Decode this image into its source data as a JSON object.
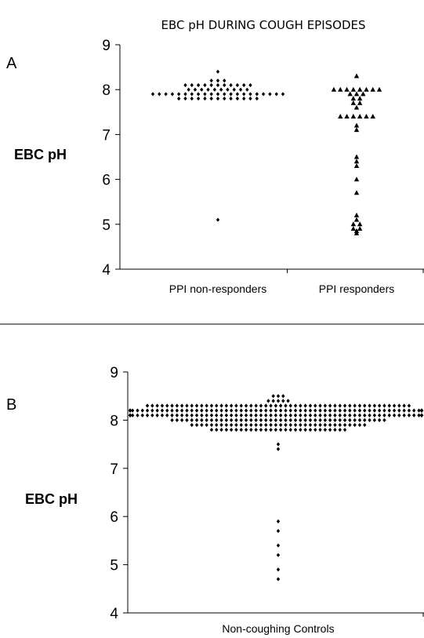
{
  "title": "EBC pH DURING COUGH EPISODES",
  "chart_data": [
    {
      "panel_label": "A",
      "type": "scatter",
      "ylabel": "EBC pH",
      "ylim": [
        4,
        9
      ],
      "yticks": [
        4,
        5,
        6,
        7,
        8,
        9
      ],
      "categories": [
        "PPI non-responders",
        "PPI responders"
      ],
      "series": [
        {
          "category": "PPI non-responders",
          "marker": "diamond",
          "values": [
            5.1,
            7.8,
            7.8,
            7.8,
            7.8,
            7.8,
            7.8,
            7.8,
            7.8,
            7.8,
            7.8,
            7.8,
            7.8,
            7.8,
            7.9,
            7.9,
            7.9,
            7.9,
            7.9,
            7.9,
            7.9,
            7.9,
            7.9,
            7.9,
            7.9,
            7.9,
            7.9,
            7.9,
            7.9,
            7.9,
            7.9,
            7.9,
            7.9,
            7.9,
            7.9,
            8.0,
            8.0,
            8.0,
            8.0,
            8.0,
            8.0,
            8.0,
            8.0,
            8.0,
            8.0,
            8.1,
            8.1,
            8.1,
            8.1,
            8.1,
            8.1,
            8.1,
            8.1,
            8.1,
            8.1,
            8.1,
            8.2,
            8.2,
            8.2,
            8.4
          ]
        },
        {
          "category": "PPI responders",
          "marker": "triangle",
          "values": [
            4.8,
            4.85,
            4.9,
            4.9,
            5.0,
            5.0,
            5.1,
            5.2,
            5.7,
            6.0,
            6.3,
            6.4,
            6.5,
            7.1,
            7.2,
            7.4,
            7.4,
            7.4,
            7.4,
            7.4,
            7.4,
            7.6,
            7.7,
            7.7,
            7.8,
            7.8,
            7.9,
            7.9,
            7.9,
            8.0,
            8.0,
            8.0,
            8.0,
            8.0,
            8.0,
            8.0,
            8.0,
            8.3
          ]
        }
      ]
    },
    {
      "panel_label": "B",
      "type": "scatter",
      "ylabel": "EBC pH",
      "ylim": [
        4,
        9
      ],
      "yticks": [
        4,
        5,
        6,
        7,
        8,
        9
      ],
      "categories": [
        "Non-coughing Controls"
      ],
      "series": [
        {
          "category": "Non-coughing Controls",
          "marker": "diamond",
          "values": [
            4.7,
            4.9,
            5.2,
            5.4,
            5.7,
            5.9,
            7.4,
            7.5,
            7.8,
            7.8,
            7.8,
            7.8,
            7.8,
            7.8,
            7.8,
            7.8,
            7.8,
            7.8,
            7.8,
            7.8,
            7.8,
            7.8,
            7.8,
            7.8,
            7.8,
            7.8,
            7.8,
            7.8,
            7.8,
            7.8,
            7.8,
            7.8,
            7.8,
            7.8,
            7.8,
            7.8,
            7.9,
            7.9,
            7.9,
            7.9,
            7.9,
            7.9,
            7.9,
            7.9,
            7.9,
            7.9,
            7.9,
            7.9,
            7.9,
            7.9,
            7.9,
            7.9,
            7.9,
            7.9,
            7.9,
            7.9,
            7.9,
            7.9,
            7.9,
            7.9,
            7.9,
            7.9,
            7.9,
            7.9,
            7.9,
            7.9,
            7.9,
            7.9,
            7.9,
            7.9,
            7.9,
            7.9,
            8.0,
            8.0,
            8.0,
            8.0,
            8.0,
            8.0,
            8.0,
            8.0,
            8.0,
            8.0,
            8.0,
            8.0,
            8.0,
            8.0,
            8.0,
            8.0,
            8.0,
            8.0,
            8.0,
            8.0,
            8.0,
            8.0,
            8.0,
            8.0,
            8.0,
            8.0,
            8.0,
            8.0,
            8.0,
            8.0,
            8.0,
            8.0,
            8.0,
            8.0,
            8.0,
            8.0,
            8.0,
            8.0,
            8.0,
            8.0,
            8.0,
            8.0,
            8.0,
            8.0,
            8.1,
            8.1,
            8.1,
            8.1,
            8.1,
            8.1,
            8.1,
            8.1,
            8.1,
            8.1,
            8.1,
            8.1,
            8.1,
            8.1,
            8.1,
            8.1,
            8.1,
            8.1,
            8.1,
            8.1,
            8.1,
            8.1,
            8.1,
            8.1,
            8.1,
            8.1,
            8.1,
            8.1,
            8.1,
            8.1,
            8.1,
            8.1,
            8.1,
            8.1,
            8.1,
            8.1,
            8.1,
            8.1,
            8.1,
            8.1,
            8.1,
            8.1,
            8.1,
            8.1,
            8.1,
            8.1,
            8.1,
            8.1,
            8.1,
            8.1,
            8.1,
            8.1,
            8.1,
            8.1,
            8.1,
            8.1,
            8.1,
            8.1,
            8.1,
            8.1,
            8.1,
            8.1,
            8.1,
            8.1,
            8.1,
            8.1,
            8.1,
            8.1,
            8.2,
            8.2,
            8.2,
            8.2,
            8.2,
            8.2,
            8.2,
            8.2,
            8.2,
            8.2,
            8.2,
            8.2,
            8.2,
            8.2,
            8.2,
            8.2,
            8.2,
            8.2,
            8.2,
            8.2,
            8.2,
            8.2,
            8.2,
            8.2,
            8.2,
            8.2,
            8.2,
            8.2,
            8.2,
            8.2,
            8.2,
            8.2,
            8.2,
            8.2,
            8.2,
            8.2,
            8.2,
            8.2,
            8.2,
            8.2,
            8.2,
            8.2,
            8.2,
            8.2,
            8.2,
            8.2,
            8.2,
            8.2,
            8.2,
            8.2,
            8.2,
            8.2,
            8.2,
            8.2,
            8.2,
            8.2,
            8.2,
            8.2,
            8.2,
            8.2,
            8.2,
            8.2,
            8.2,
            8.2,
            8.2,
            8.2,
            8.2,
            8.2,
            8.2,
            8.2,
            8.2,
            8.2,
            8.3,
            8.3,
            8.3,
            8.3,
            8.3,
            8.3,
            8.3,
            8.3,
            8.3,
            8.3,
            8.3,
            8.3,
            8.3,
            8.3,
            8.3,
            8.3,
            8.3,
            8.3,
            8.3,
            8.3,
            8.3,
            8.3,
            8.3,
            8.3,
            8.3,
            8.3,
            8.3,
            8.3,
            8.3,
            8.3,
            8.3,
            8.3,
            8.3,
            8.3,
            8.3,
            8.3,
            8.3,
            8.3,
            8.3,
            8.3,
            8.3,
            8.3,
            8.3,
            8.3,
            8.3,
            8.3,
            8.3,
            8.3,
            8.3,
            8.3,
            8.3,
            8.3,
            8.3,
            8.3,
            8.4,
            8.4,
            8.4,
            8.4,
            8.4,
            8.5,
            8.5,
            8.5
          ]
        }
      ]
    }
  ]
}
